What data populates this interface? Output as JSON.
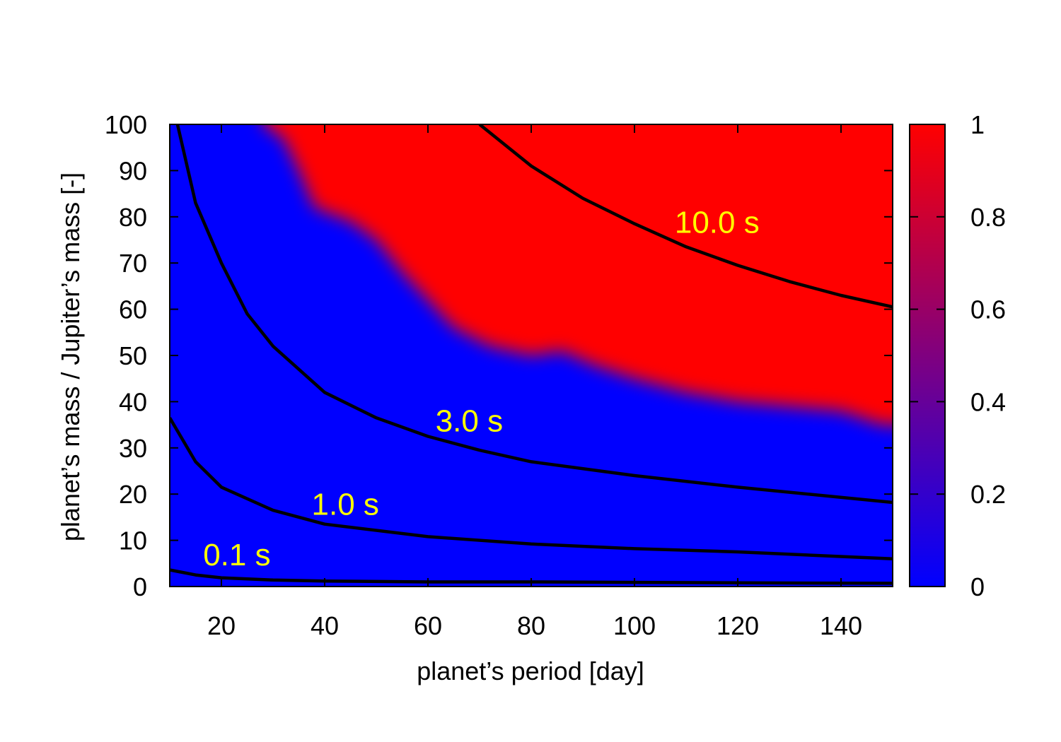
{
  "chart_data": {
    "type": "heatmap",
    "title": "",
    "xlabel": "planet’s period [day]",
    "ylabel": "planet’s mass  / Jupiter’s mass [-]",
    "xlim": [
      10,
      150
    ],
    "ylim": [
      0,
      100
    ],
    "xticks": [
      20,
      40,
      60,
      80,
      100,
      120,
      140
    ],
    "yticks": [
      0,
      10,
      20,
      30,
      40,
      50,
      60,
      70,
      80,
      90,
      100
    ],
    "colorbar": {
      "range": [
        0,
        1
      ],
      "ticks": [
        0,
        0.2,
        0.4,
        0.6,
        0.8,
        1
      ],
      "tick_labels": [
        "0",
        "0.2",
        "0.4",
        "0.6",
        "0.8",
        "1"
      ],
      "low_color": "#0000ff",
      "high_color": "#ff0000"
    },
    "high_region_boundary": {
      "description_value": 1,
      "points": [
        [
          28,
          100
        ],
        [
          32,
          97
        ],
        [
          35,
          90
        ],
        [
          38,
          82
        ],
        [
          45,
          79
        ],
        [
          50,
          75
        ],
        [
          55,
          68
        ],
        [
          60,
          62
        ],
        [
          65,
          56
        ],
        [
          72,
          52
        ],
        [
          80,
          50
        ],
        [
          86,
          51
        ],
        [
          92,
          48
        ],
        [
          100,
          45
        ],
        [
          110,
          42
        ],
        [
          120,
          40
        ],
        [
          130,
          39
        ],
        [
          140,
          38
        ],
        [
          148,
          35
        ],
        [
          150,
          35
        ]
      ]
    },
    "grid": true,
    "contours": [
      {
        "label": "0.1 s",
        "label_x": 23,
        "label_y": 7,
        "x": [
          10,
          15,
          20,
          30,
          40,
          60,
          80,
          100,
          120,
          150
        ],
        "y": [
          3.6,
          2.5,
          1.9,
          1.4,
          1.2,
          1.0,
          1.0,
          0.9,
          0.8,
          0.7
        ]
      },
      {
        "label": "1.0 s",
        "label_x": 44,
        "label_y": 18,
        "x": [
          10,
          15,
          20,
          30,
          40,
          60,
          80,
          100,
          120,
          150
        ],
        "y": [
          36.5,
          27,
          21.5,
          16.5,
          13.5,
          10.8,
          9.2,
          8.2,
          7.5,
          6.0
        ]
      },
      {
        "label": "3.0 s",
        "label_x": 68,
        "label_y": 36,
        "x": [
          11.5,
          15,
          20,
          25,
          30,
          40,
          50,
          60,
          70,
          80,
          100,
          120,
          150
        ],
        "y": [
          100,
          83,
          70,
          59,
          52,
          42,
          36.5,
          32.5,
          29.5,
          27,
          24,
          21.5,
          18.2
        ]
      },
      {
        "label": "10.0 s",
        "label_x": 116,
        "label_y": 79,
        "x": [
          70,
          80,
          90,
          100,
          110,
          120,
          130,
          140,
          150
        ],
        "y": [
          100,
          91,
          84,
          78.5,
          73.5,
          69.5,
          66,
          63,
          60.5
        ]
      }
    ],
    "contour_label_color": "#ffff00",
    "contour_line_color": "#000000"
  }
}
